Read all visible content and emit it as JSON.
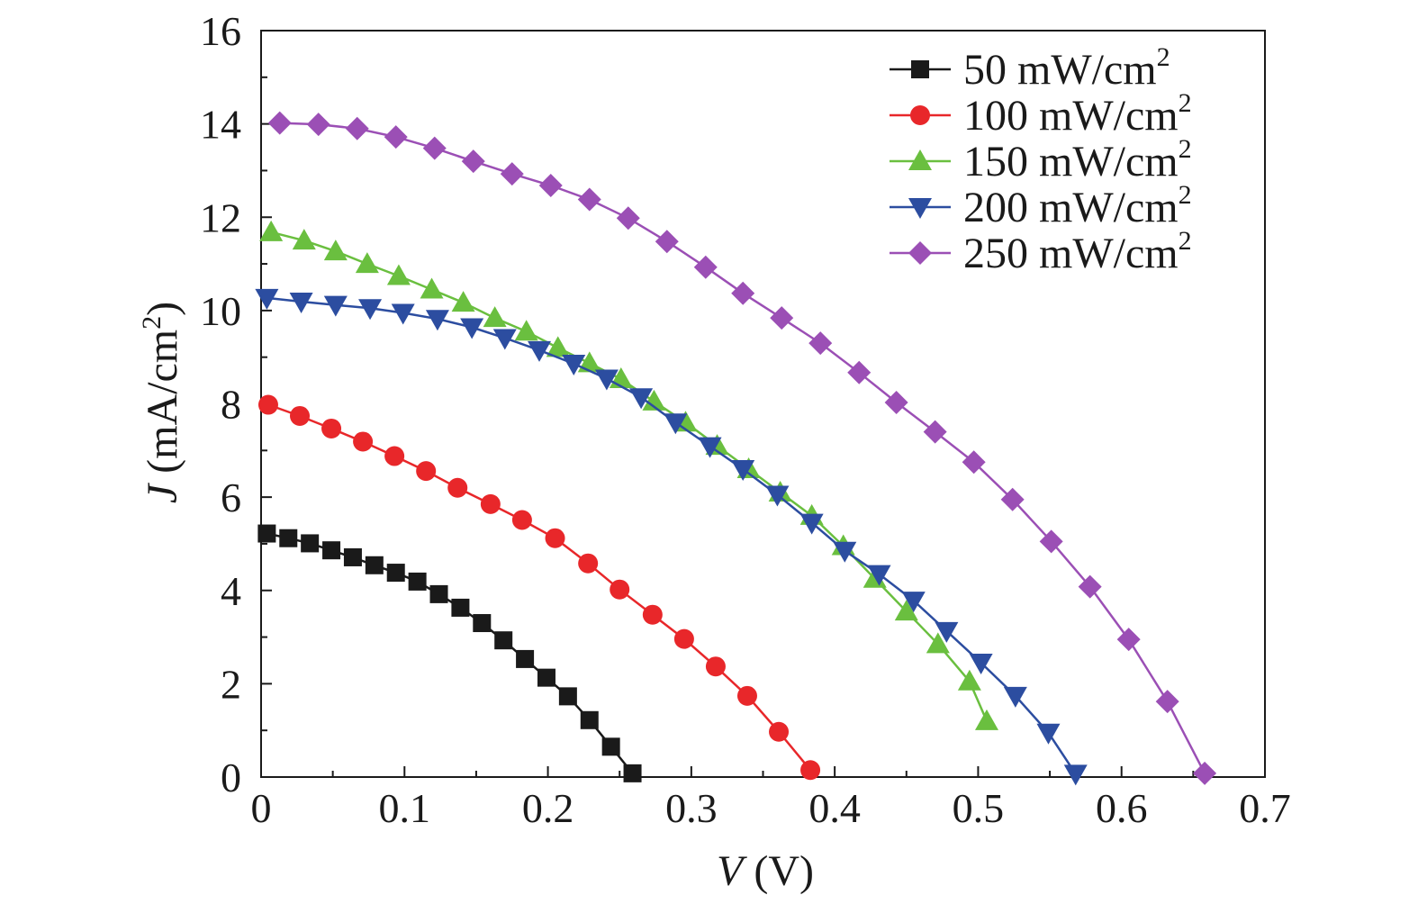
{
  "chart_data": {
    "type": "line",
    "xlabel": {
      "var": "V",
      "unit": " (V)"
    },
    "ylabel": {
      "var": "J",
      "unit_pre": " (mA/cm",
      "unit_sup": "2",
      "unit_post": ")"
    },
    "xlim": [
      0,
      0.7
    ],
    "ylim": [
      0,
      16
    ],
    "xticks": [
      0,
      0.1,
      0.2,
      0.3,
      0.4,
      0.5,
      0.6,
      0.7
    ],
    "xtick_labels": [
      "0",
      "0.1",
      "0.2",
      "0.3",
      "0.4",
      "0.5",
      "0.6",
      "0.7"
    ],
    "yticks": [
      0,
      2,
      4,
      6,
      8,
      10,
      12,
      14,
      16
    ],
    "ytick_labels": [
      "0",
      "2",
      "4",
      "6",
      "8",
      "10",
      "12",
      "14",
      "16"
    ],
    "grid": false,
    "legend_position": "top-right",
    "series": [
      {
        "name": "50 mW/cm",
        "name_sup": "2",
        "color": "#1a1a1a",
        "marker": "square",
        "x": [
          0.004,
          0.019,
          0.034,
          0.049,
          0.064,
          0.079,
          0.094,
          0.109,
          0.124,
          0.139,
          0.154,
          0.169,
          0.184,
          0.199,
          0.214,
          0.229,
          0.244,
          0.259
        ],
        "y": [
          5.22,
          5.12,
          5.01,
          4.86,
          4.71,
          4.54,
          4.38,
          4.19,
          3.92,
          3.63,
          3.3,
          2.93,
          2.53,
          2.13,
          1.73,
          1.22,
          0.65,
          0.08
        ]
      },
      {
        "name": "100 mW/cm",
        "name_sup": "2",
        "color": "#e8272a",
        "marker": "circle",
        "x": [
          0.005,
          0.027,
          0.049,
          0.071,
          0.093,
          0.115,
          0.137,
          0.16,
          0.182,
          0.205,
          0.228,
          0.25,
          0.273,
          0.295,
          0.317,
          0.339,
          0.361,
          0.383
        ],
        "y": [
          7.98,
          7.74,
          7.47,
          7.19,
          6.88,
          6.56,
          6.2,
          5.85,
          5.51,
          5.12,
          4.58,
          4.02,
          3.48,
          2.96,
          2.37,
          1.74,
          0.97,
          0.15
        ]
      },
      {
        "name": "150 mW/cm",
        "name_sup": "2",
        "color": "#6abf3f",
        "marker": "triangle-up",
        "x": [
          0.007,
          0.03,
          0.052,
          0.074,
          0.096,
          0.119,
          0.141,
          0.163,
          0.185,
          0.207,
          0.229,
          0.251,
          0.274,
          0.296,
          0.318,
          0.34,
          0.362,
          0.384,
          0.406,
          0.428,
          0.45,
          0.472,
          0.494,
          0.506
        ],
        "y": [
          11.68,
          11.5,
          11.27,
          11.0,
          10.74,
          10.45,
          10.17,
          9.84,
          9.55,
          9.2,
          8.87,
          8.53,
          8.05,
          7.6,
          7.1,
          6.6,
          6.1,
          5.6,
          4.95,
          4.25,
          3.55,
          2.85,
          2.05,
          1.2
        ]
      },
      {
        "name": "200 mW/cm",
        "name_sup": "2",
        "color": "#2c4da0",
        "marker": "triangle-down",
        "x": [
          0.004,
          0.028,
          0.052,
          0.076,
          0.099,
          0.123,
          0.147,
          0.17,
          0.194,
          0.218,
          0.241,
          0.265,
          0.289,
          0.313,
          0.336,
          0.36,
          0.384,
          0.407,
          0.431,
          0.455,
          0.478,
          0.502,
          0.526,
          0.549,
          0.568
        ],
        "y": [
          10.27,
          10.19,
          10.12,
          10.05,
          9.95,
          9.82,
          9.64,
          9.41,
          9.15,
          8.86,
          8.54,
          8.14,
          7.6,
          7.09,
          6.6,
          6.05,
          5.45,
          4.85,
          4.35,
          3.78,
          3.13,
          2.45,
          1.74,
          0.95,
          0.07
        ]
      },
      {
        "name": "250 mW/cm",
        "name_sup": "2",
        "color": "#9b4fb5",
        "marker": "diamond",
        "x": [
          0.013,
          0.04,
          0.067,
          0.094,
          0.121,
          0.148,
          0.175,
          0.202,
          0.229,
          0.256,
          0.283,
          0.31,
          0.336,
          0.363,
          0.39,
          0.417,
          0.443,
          0.47,
          0.497,
          0.524,
          0.551,
          0.578,
          0.605,
          0.632,
          0.658
        ],
        "y": [
          14.02,
          13.99,
          13.9,
          13.72,
          13.48,
          13.2,
          12.93,
          12.68,
          12.38,
          11.98,
          11.48,
          10.93,
          10.37,
          9.84,
          9.3,
          8.67,
          8.03,
          7.4,
          6.75,
          5.95,
          5.05,
          4.08,
          2.95,
          1.62,
          0.08
        ]
      }
    ]
  }
}
